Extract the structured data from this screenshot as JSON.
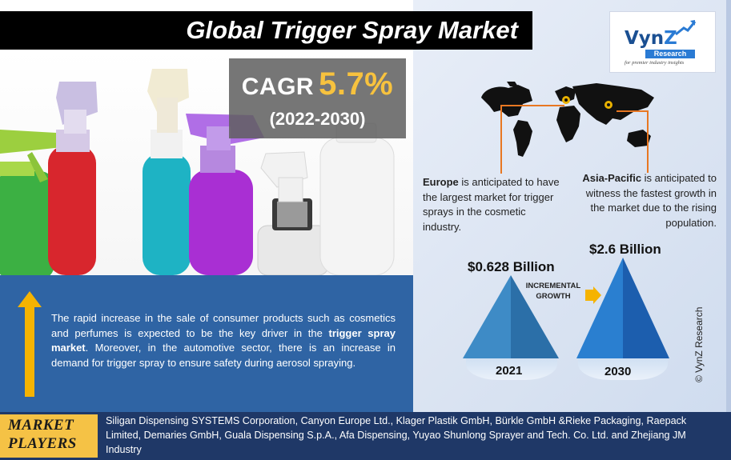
{
  "title": "Global Trigger Spray Market",
  "cagr": {
    "label": "CAGR",
    "value": "5.7%",
    "period": "(2022-2030)"
  },
  "logo": {
    "brand_prefix": "Vyn",
    "brand_suffix": "Z",
    "sub": "Research",
    "tagline": "for premier industry insights"
  },
  "driver": {
    "part1": "The rapid increase in the sale of consumer products such as cosmetics and perfumes is expected to be the key driver in the ",
    "bold": "trigger spray market",
    "part2": ". Moreover, in the automotive sector, there is an increase in demand for trigger spray to ensure safety during aerosol spraying."
  },
  "regions": {
    "europe": {
      "name": "Europe",
      "text": " is anticipated to have the largest market for trigger sprays in the cosmetic industry."
    },
    "asia": {
      "name": "Asia-Pacific",
      "text": " is anticipated to witness the fastest growth in the market due to the rising population."
    }
  },
  "growth": {
    "value_2021": "$0.628 Billion",
    "value_2030": "$2.6 Billion",
    "year_2021": "2021",
    "year_2030": "2030",
    "incremental_line1": "INCREMENTAL",
    "incremental_line2": "GROWTH"
  },
  "copyright": "© VynZ Research",
  "footer": {
    "label_line1": "MARKET",
    "label_line2": "PLAYERS",
    "players": "Siligan Dispensing SYSTEMS Corporation, Canyon Europe Ltd., Klager Plastik GmbH, Bürkle GmbH &Rieke Packaging, Raepack Limited, Demaries GmbH, Guala Dispensing S.p.A., Afa Dispensing, Yuyao Shunlong Sprayer and Tech. Co. Ltd. and Zhejiang JM Industry"
  },
  "colors": {
    "title_bg": "#000000",
    "accent_gold": "#f7c23e",
    "panel_blue": "#2f64a4",
    "footer_navy": "#1f3867",
    "pin_orange": "#e87722"
  }
}
